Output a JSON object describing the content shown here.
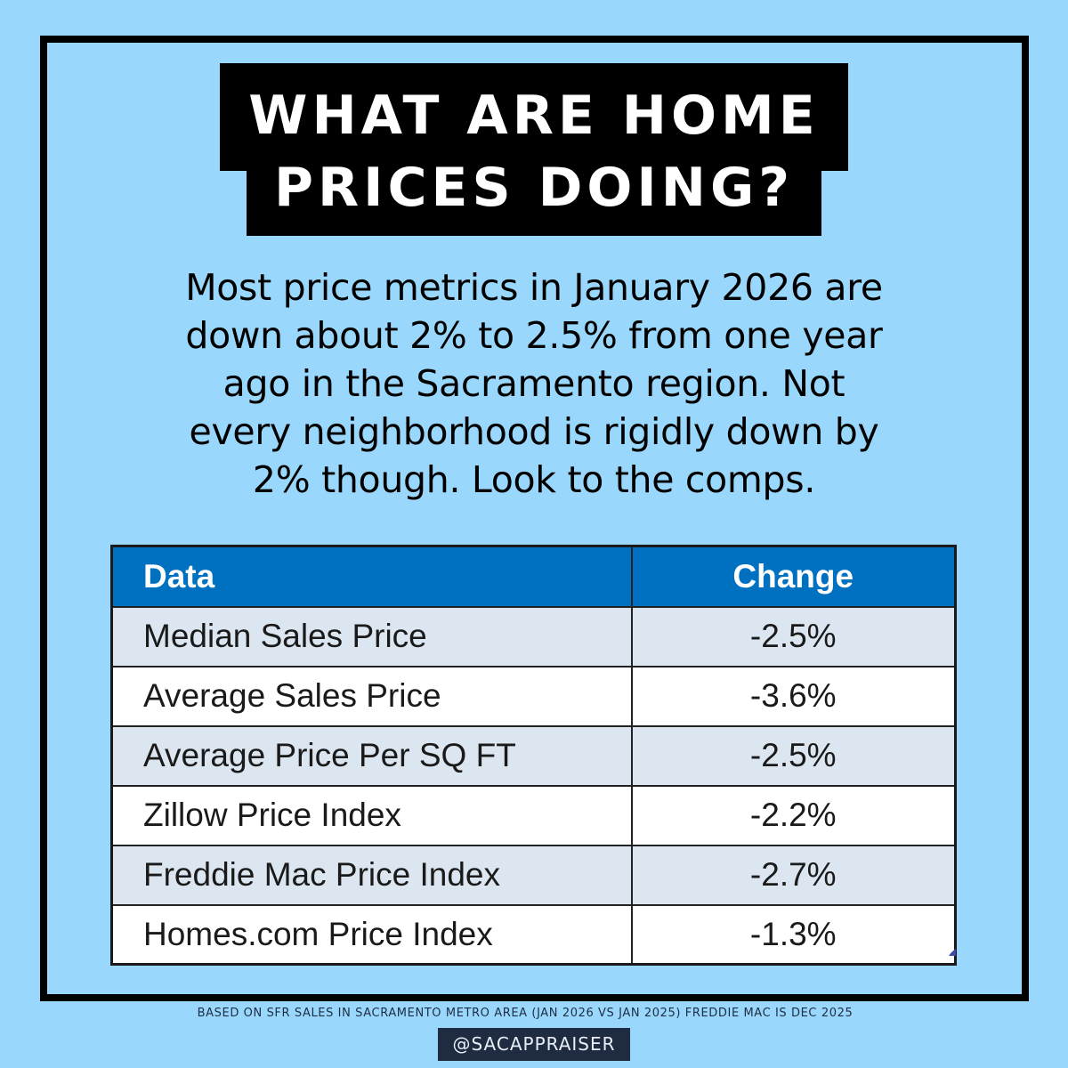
{
  "colors": {
    "background": "#99d8fc",
    "frame": "#000000",
    "title_bg": "#000000",
    "title_text": "#ffffff",
    "table_header_bg": "#0070c0",
    "table_shade_bg": "#dce6f1",
    "badge_bg": "#1f2b40"
  },
  "title": {
    "line1": "WHAT ARE HOME",
    "line2": "PRICES DOING?"
  },
  "body": {
    "lines": [
      "Most price metrics in January 2026 are",
      "down about 2% to 2.5% from one year",
      "ago in the Sacramento region. Not",
      "every neighborhood is rigidly down by",
      "2% though. Look to the comps."
    ]
  },
  "table": {
    "headers": [
      "Data",
      "Change"
    ],
    "rows": [
      {
        "label": "Median Sales Price",
        "change": "-2.5%"
      },
      {
        "label": "Average Sales Price",
        "change": "-3.6%"
      },
      {
        "label": "Average Price Per SQ FT",
        "change": "-2.5%"
      },
      {
        "label": "Zillow Price Index",
        "change": "-2.2%"
      },
      {
        "label": "Freddie Mac Price Index",
        "change": "-2.7%"
      },
      {
        "label": "Homes.com Price Index",
        "change": "-1.3%"
      }
    ]
  },
  "chart_data": {
    "type": "table",
    "title": "WHAT ARE HOME PRICES DOING?",
    "columns": [
      "Data",
      "Change"
    ],
    "categories": [
      "Median Sales Price",
      "Average Sales Price",
      "Average Price Per SQ FT",
      "Zillow Price Index",
      "Freddie Mac Price Index",
      "Homes.com Price Index"
    ],
    "values": [
      -2.5,
      -3.6,
      -2.5,
      -2.2,
      -2.7,
      -1.3
    ],
    "unit": "%"
  },
  "footer": {
    "note": "BASED ON SFR SALES IN SACRAMENTO METRO AREA (JAN 2026 VS JAN 2025) FREDDIE MAC IS DEC 2025",
    "handle": "@SACAPPRAISER"
  }
}
